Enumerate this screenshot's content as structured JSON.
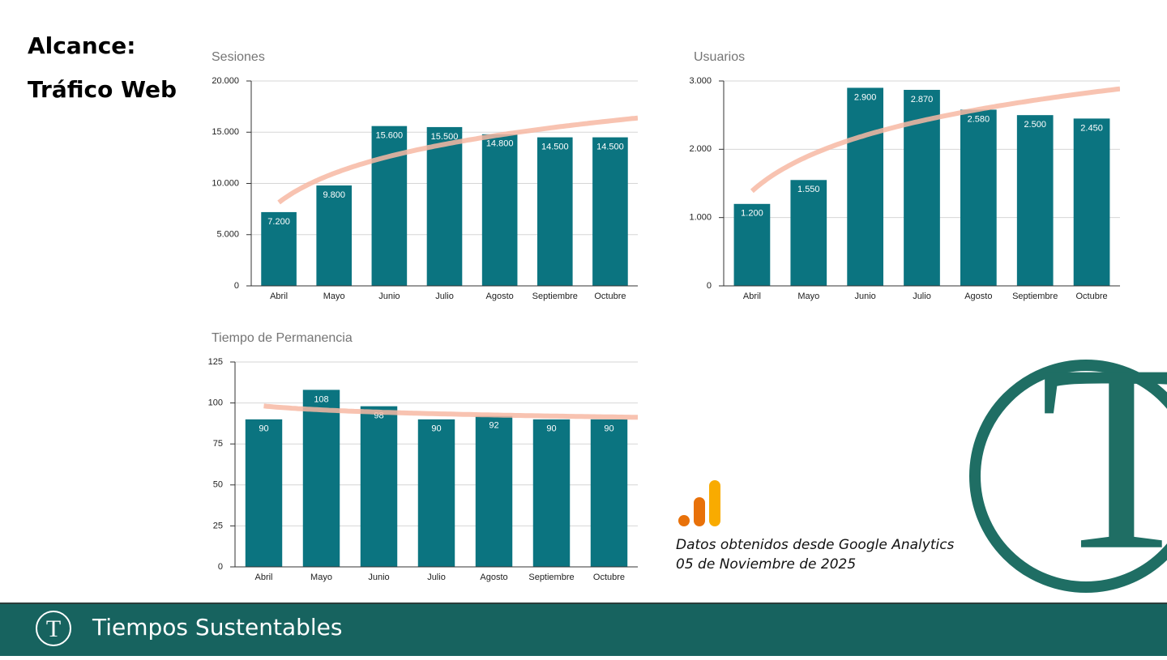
{
  "header": {
    "title": "Alcance:",
    "subtitle": "Tráfico Web"
  },
  "source_note": {
    "line1": "Datos obtenidos desde Google Analytics",
    "line2": "05 de Noviembre de 2025"
  },
  "footer": {
    "brand": "Tiempos Sustentables",
    "logo_letter": "T"
  },
  "chart_data": [
    {
      "type": "bar",
      "title": "Sesiones",
      "color": "#0b7480",
      "trendline": "logarithmic",
      "trendline_color": "#f7b9a3",
      "grid": true,
      "categories": [
        "Abril",
        "Mayo",
        "Junio",
        "Julio",
        "Agosto",
        "Septiembre",
        "Octubre"
      ],
      "values": [
        7200,
        9800,
        15600,
        15500,
        14800,
        14500,
        14500
      ],
      "value_labels": [
        "7.200",
        "9.800",
        "15.600",
        "15.500",
        "14.800",
        "14.500",
        "14.500"
      ],
      "ylim": [
        0,
        20000
      ],
      "yticks": [
        0,
        {
          "value": 5000,
          "label": "5.000"
        },
        {
          "value": 10000,
          "label": "10.000"
        },
        {
          "value": 15000,
          "label": "15.000"
        },
        {
          "value": 20000,
          "label": "20.000"
        }
      ]
    },
    {
      "type": "bar",
      "title": "Usuarios",
      "color": "#0b7480",
      "trendline": "logarithmic",
      "trendline_color": "#f7b9a3",
      "grid": true,
      "categories": [
        "Abril",
        "Mayo",
        "Junio",
        "Julio",
        "Agosto",
        "Septiembre",
        "Octubre"
      ],
      "values": [
        1200,
        1550,
        2900,
        2870,
        2580,
        2500,
        2450
      ],
      "value_labels": [
        "1.200",
        "1.550",
        "2.900",
        "2.870",
        "2.580",
        "2.500",
        "2.450"
      ],
      "ylim": [
        0,
        3000
      ],
      "yticks": [
        0,
        {
          "value": 1000,
          "label": "1.000"
        },
        {
          "value": 2000,
          "label": "2.000"
        },
        {
          "value": 3000,
          "label": "3.000"
        }
      ]
    },
    {
      "type": "bar",
      "title": "Tiempo de Permanencia",
      "color": "#0b7480",
      "trendline": "logarithmic",
      "trendline_color": "#f7b9a3",
      "grid": true,
      "categories": [
        "Abril",
        "Mayo",
        "Junio",
        "Julio",
        "Agosto",
        "Septiembre",
        "Octubre"
      ],
      "values": [
        90,
        108,
        98,
        90,
        92,
        90,
        90
      ],
      "ylim": [
        0,
        125
      ],
      "yticks": [
        0,
        25,
        50,
        75,
        100,
        125
      ]
    }
  ]
}
